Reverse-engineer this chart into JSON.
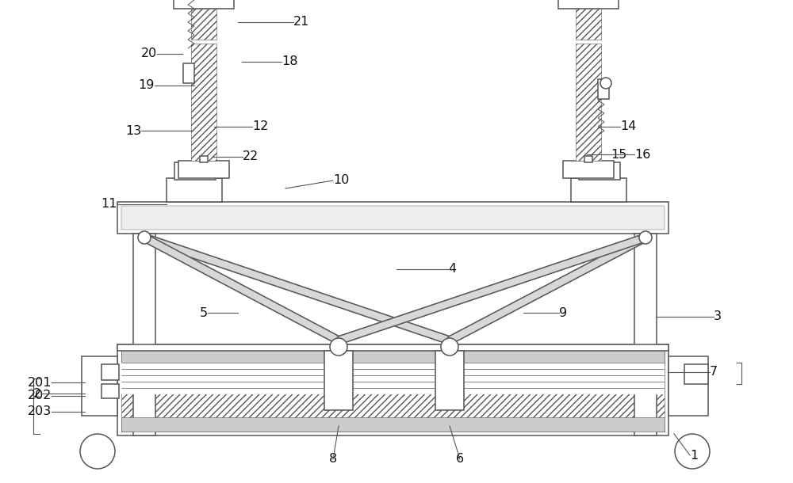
{
  "bg_color": "#ffffff",
  "line_color": "#555555",
  "label_color": "#111111",
  "label_fontsize": 11.5,
  "lw": 1.1
}
